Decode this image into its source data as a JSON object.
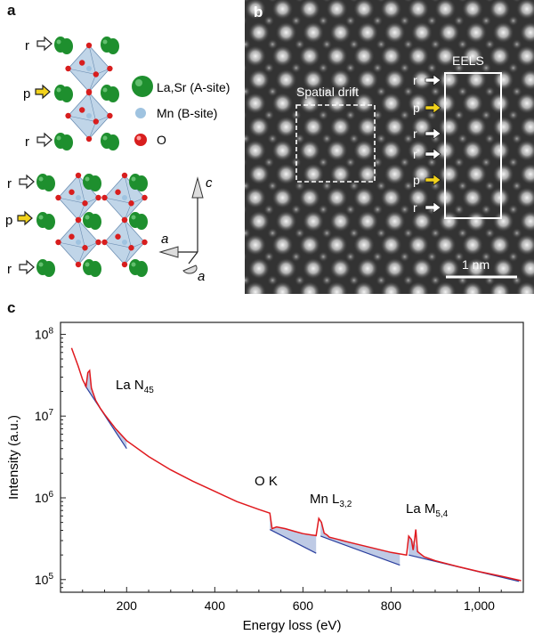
{
  "panel_a": {
    "label": "a",
    "layer_labels_top": [
      "r",
      "p",
      "r"
    ],
    "layer_labels_bottom": [
      "r",
      "p",
      "r"
    ],
    "legend": [
      {
        "text": "La,Sr (A-site)",
        "color": "#1e8f2e"
      },
      {
        "text": "Mn (B-site)",
        "color": "#9fc3e0"
      },
      {
        "text": "O",
        "color": "#d81e1e"
      }
    ],
    "axes": {
      "c": "c",
      "a1": "a",
      "a2": "a"
    },
    "colors": {
      "p_arrow": "#f2d21b",
      "r_arrow": "#ffffff",
      "octahedron": "#8db3d6"
    }
  },
  "panel_b": {
    "label": "b",
    "box_labels": {
      "drift": "Spatial drift",
      "eels": "EELS"
    },
    "row_labels": [
      "r",
      "p",
      "r",
      "r",
      "p",
      "r"
    ],
    "scale_bar": "1 nm"
  },
  "panel_c": {
    "label": "c",
    "annotations": {
      "la_n": "La N",
      "la_n_sub": "45",
      "ok": "O K",
      "mn_l": "Mn L",
      "mn_l_sub": "3,2",
      "la_m": "La M",
      "la_m_sub": "5,4"
    }
  },
  "chart_data": {
    "type": "line",
    "title": "",
    "xlabel": "Energy loss (eV)",
    "ylabel": "Intensity (a.u.)",
    "xlim": [
      50,
      1100
    ],
    "ylim": [
      70000,
      140000000
    ],
    "yscale": "log",
    "x_ticks": [
      200,
      400,
      600,
      800,
      1000
    ],
    "x_tick_labels": [
      "200",
      "400",
      "600",
      "800",
      "1,000"
    ],
    "y_ticks": [
      100000,
      1000000,
      10000000,
      100000000
    ],
    "y_tick_labels": [
      "10^5",
      "10^6",
      "10^7",
      "10^8"
    ],
    "series": [
      {
        "color": "#e0191e",
        "x": [
          75,
          90,
          100,
          108,
          112,
          116,
          120,
          125,
          130,
          140,
          150,
          175,
          200,
          250,
          300,
          350,
          400,
          450,
          500,
          525,
          530,
          540,
          560,
          580,
          600,
          620,
          630,
          636,
          642,
          648,
          655,
          660,
          680,
          700,
          750,
          800,
          835,
          840,
          846,
          850,
          853,
          856,
          860,
          875,
          900,
          950,
          1000,
          1050,
          1095
        ],
        "y": [
          68000000,
          41000000,
          28000000,
          23000000,
          34000000,
          36000000,
          22000000,
          18500000,
          15500000,
          12500000,
          10500000,
          7000000,
          5000000,
          3200000,
          2200000,
          1600000,
          1200000,
          900000,
          720000,
          650000,
          420000,
          440000,
          420000,
          390000,
          365000,
          350000,
          345000,
          560000,
          500000,
          370000,
          350000,
          330000,
          310000,
          290000,
          250000,
          215000,
          200000,
          340000,
          310000,
          230000,
          300000,
          410000,
          220000,
          190000,
          170000,
          145000,
          125000,
          110000,
          97000
        ]
      }
    ],
    "backgrounds": [
      {
        "x": [
          105,
          200
        ],
        "y": [
          24000000,
          4000000
        ],
        "color": "#a8b8dc"
      },
      {
        "x": [
          525,
          630
        ],
        "y": [
          410000,
          210000
        ],
        "color": "#a8b8dc"
      },
      {
        "x": [
          640,
          820
        ],
        "y": [
          340000,
          150000
        ],
        "color": "#a8b8dc"
      },
      {
        "x": [
          840,
          1090
        ],
        "y": [
          200000,
          95000
        ],
        "color": "#a8b8dc"
      }
    ]
  }
}
